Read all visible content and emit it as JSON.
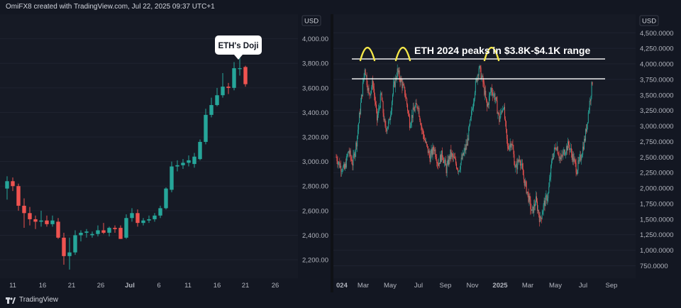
{
  "header": {
    "credit": "OmiFX8 created with TradingView.com, Jul 22, 2025 09:37 UTC+1"
  },
  "footer": {
    "brand": "TradingView",
    "logo_icon": "tradingview-logo-icon"
  },
  "colors": {
    "up": "#26a69a",
    "down": "#ef5350",
    "annotation": "#f5e84a",
    "line": "#ffffff"
  },
  "chart_data": [
    {
      "type": "candlestick",
      "currency_label": "USD",
      "y_ticks": [
        "4,000.00",
        "3,800.00",
        "3,600.00",
        "3,400.00",
        "3,200.00",
        "3,000.00",
        "2,800.00",
        "2,600.00",
        "2,400.00",
        "2,200.00"
      ],
      "ylim": [
        2050,
        4200
      ],
      "x_ticks": [
        "11",
        "16",
        "21",
        "26",
        "Jul",
        "6",
        "11",
        "16",
        "21",
        "26"
      ],
      "annotation": "ETH's Doji",
      "candles": [
        {
          "o": 2780,
          "h": 2880,
          "l": 2690,
          "c": 2840
        },
        {
          "o": 2840,
          "h": 2870,
          "l": 2760,
          "c": 2800
        },
        {
          "o": 2800,
          "h": 2820,
          "l": 2600,
          "c": 2640
        },
        {
          "o": 2640,
          "h": 2700,
          "l": 2460,
          "c": 2580
        },
        {
          "o": 2580,
          "h": 2630,
          "l": 2480,
          "c": 2530
        },
        {
          "o": 2530,
          "h": 2560,
          "l": 2450,
          "c": 2510
        },
        {
          "o": 2510,
          "h": 2600,
          "l": 2470,
          "c": 2520
        },
        {
          "o": 2520,
          "h": 2560,
          "l": 2470,
          "c": 2490
        },
        {
          "o": 2490,
          "h": 2560,
          "l": 2470,
          "c": 2520
        },
        {
          "o": 2510,
          "h": 2540,
          "l": 2370,
          "c": 2380
        },
        {
          "o": 2380,
          "h": 2420,
          "l": 2160,
          "c": 2230
        },
        {
          "o": 2230,
          "h": 2380,
          "l": 2120,
          "c": 2260
        },
        {
          "o": 2260,
          "h": 2440,
          "l": 2240,
          "c": 2400
        },
        {
          "o": 2400,
          "h": 2440,
          "l": 2350,
          "c": 2420
        },
        {
          "o": 2420,
          "h": 2450,
          "l": 2380,
          "c": 2430
        },
        {
          "o": 2400,
          "h": 2430,
          "l": 2380,
          "c": 2410
        },
        {
          "o": 2410,
          "h": 2480,
          "l": 2390,
          "c": 2440
        },
        {
          "o": 2440,
          "h": 2500,
          "l": 2410,
          "c": 2420
        },
        {
          "o": 2420,
          "h": 2470,
          "l": 2390,
          "c": 2460
        },
        {
          "o": 2460,
          "h": 2480,
          "l": 2420,
          "c": 2450
        },
        {
          "o": 2460,
          "h": 2480,
          "l": 2370,
          "c": 2370
        },
        {
          "o": 2380,
          "h": 2570,
          "l": 2370,
          "c": 2540
        },
        {
          "o": 2540,
          "h": 2620,
          "l": 2510,
          "c": 2580
        },
        {
          "o": 2580,
          "h": 2610,
          "l": 2470,
          "c": 2500
        },
        {
          "o": 2500,
          "h": 2540,
          "l": 2480,
          "c": 2520
        },
        {
          "o": 2520,
          "h": 2560,
          "l": 2500,
          "c": 2530
        },
        {
          "o": 2530,
          "h": 2580,
          "l": 2510,
          "c": 2560
        },
        {
          "o": 2560,
          "h": 2640,
          "l": 2540,
          "c": 2620
        },
        {
          "o": 2620,
          "h": 2790,
          "l": 2610,
          "c": 2780
        },
        {
          "o": 2770,
          "h": 3000,
          "l": 2750,
          "c": 2960
        },
        {
          "o": 2960,
          "h": 3010,
          "l": 2920,
          "c": 2970
        },
        {
          "o": 2970,
          "h": 3020,
          "l": 2940,
          "c": 2990
        },
        {
          "o": 2990,
          "h": 3050,
          "l": 2960,
          "c": 3010
        },
        {
          "o": 2980,
          "h": 3070,
          "l": 2950,
          "c": 3040
        },
        {
          "o": 3020,
          "h": 3180,
          "l": 3010,
          "c": 3160
        },
        {
          "o": 3160,
          "h": 3430,
          "l": 3140,
          "c": 3380
        },
        {
          "o": 3380,
          "h": 3520,
          "l": 3360,
          "c": 3460
        },
        {
          "o": 3460,
          "h": 3600,
          "l": 3450,
          "c": 3540
        },
        {
          "o": 3540,
          "h": 3720,
          "l": 3520,
          "c": 3610
        },
        {
          "o": 3610,
          "h": 3640,
          "l": 3550,
          "c": 3600
        },
        {
          "o": 3600,
          "h": 3810,
          "l": 3580,
          "c": 3760
        },
        {
          "o": 3760,
          "h": 3850,
          "l": 3700,
          "c": 3760
        },
        {
          "o": 3770,
          "h": 3780,
          "l": 3610,
          "c": 3630
        }
      ]
    },
    {
      "type": "candlestick",
      "currency_label": "USD",
      "title": "ETH 2024 peaks in $3.8K-$4.1K range",
      "y_ticks": [
        "4,500.0000",
        "4,250.0000",
        "4,000.0000",
        "3,750.0000",
        "3,500.0000",
        "3,250.0000",
        "3,000.0000",
        "2,750.0000",
        "2,500.0000",
        "2,250.0000",
        "2,000.0000",
        "1,750.0000",
        "1,500.0000",
        "1,250.0000",
        "1,000.0000",
        "750.0000"
      ],
      "ylim": [
        550,
        4800
      ],
      "x_ticks": [
        "024",
        "Mar",
        "May",
        "Jul",
        "Sep",
        "Nov",
        "2025",
        "Mar",
        "May",
        "Jul",
        "Sep"
      ],
      "resistance_levels": [
        4080,
        3760
      ],
      "price_path": [
        2500,
        2350,
        2300,
        2600,
        2400,
        2750,
        3350,
        3950,
        3500,
        3700,
        3100,
        3500,
        2950,
        3050,
        3600,
        3880,
        3700,
        3500,
        3050,
        3250,
        3350,
        2950,
        2700,
        2500,
        2650,
        2400,
        2550,
        2300,
        2550,
        2450,
        2300,
        2500,
        2700,
        3100,
        3600,
        3950,
        3700,
        3300,
        3600,
        3450,
        3100,
        3350,
        2650,
        2750,
        2300,
        2500,
        2150,
        1900,
        1600,
        1800,
        1480,
        1750,
        1900,
        2500,
        2700,
        2450,
        2600,
        2700,
        2500,
        2300,
        2500,
        2800,
        3300,
        3800
      ]
    }
  ]
}
